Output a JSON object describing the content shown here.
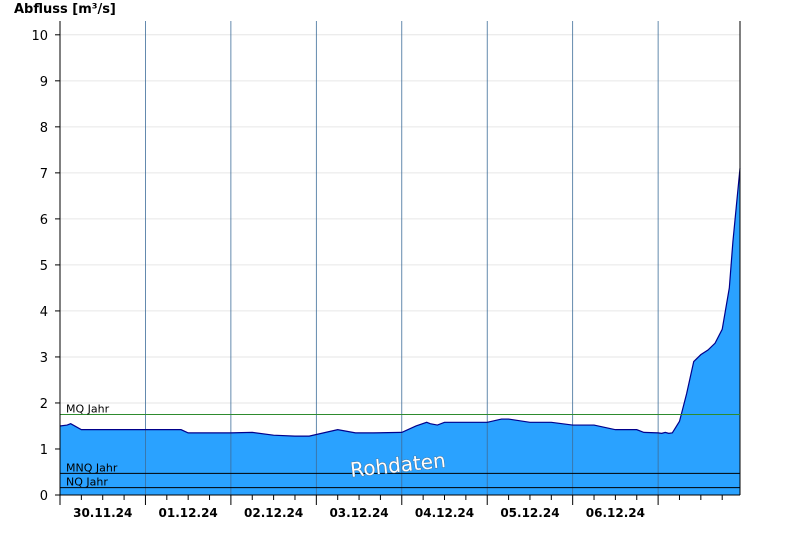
{
  "chart_data": {
    "type": "area",
    "ylabel": "Abfluss [m³/s]",
    "ylim": [
      0,
      10.3
    ],
    "yticks": [
      "0",
      "1",
      "2",
      "3",
      "4",
      "5",
      "6",
      "7",
      "8",
      "9",
      "10"
    ],
    "xlim": [
      "2024-11-29T00:00",
      "2024-12-06T23:00"
    ],
    "xticks": [
      "30.11.24",
      "01.12.24",
      "02.12.24",
      "03.12.24",
      "04.12.24",
      "05.12.24",
      "06.12.24"
    ],
    "grid": true,
    "series": [
      {
        "color": "#2aa2ff",
        "line_color": "#00008b",
        "x": [
          "2024-11-29T00:00",
          "2024-11-29T02:00",
          "2024-11-29T03:00",
          "2024-11-29T06:00",
          "2024-11-30T00:00",
          "2024-11-30T06:00",
          "2024-11-30T10:00",
          "2024-11-30T12:00",
          "2024-11-30T18:00",
          "2024-12-01T00:00",
          "2024-12-01T06:00",
          "2024-12-01T12:00",
          "2024-12-01T18:00",
          "2024-12-01T22:00",
          "2024-12-02T06:00",
          "2024-12-02T11:00",
          "2024-12-02T16:00",
          "2024-12-03T00:00",
          "2024-12-03T04:00",
          "2024-12-03T07:00",
          "2024-12-03T08:00",
          "2024-12-03T10:00",
          "2024-12-03T12:00",
          "2024-12-03T18:00",
          "2024-12-04T00:00",
          "2024-12-04T04:00",
          "2024-12-04T06:00",
          "2024-12-04T12:00",
          "2024-12-04T18:00",
          "2024-12-05T00:00",
          "2024-12-05T06:00",
          "2024-12-05T12:00",
          "2024-12-05T16:00",
          "2024-12-05T18:00",
          "2024-12-05T20:00",
          "2024-12-06T00:00",
          "2024-12-06T01:00",
          "2024-12-06T02:00",
          "2024-12-06T03:00",
          "2024-12-06T04:00",
          "2024-12-06T06:00",
          "2024-12-06T08:00",
          "2024-12-06T10:00",
          "2024-12-06T12:00",
          "2024-12-06T14:00",
          "2024-12-06T16:00",
          "2024-12-06T18:00",
          "2024-12-06T20:00",
          "2024-12-06T21:00",
          "2024-12-06T22:00",
          "2024-12-06T23:00"
        ],
        "values": [
          1.5,
          1.52,
          1.55,
          1.42,
          1.42,
          1.42,
          1.42,
          1.35,
          1.35,
          1.35,
          1.36,
          1.3,
          1.28,
          1.28,
          1.42,
          1.35,
          1.35,
          1.36,
          1.5,
          1.58,
          1.55,
          1.52,
          1.58,
          1.58,
          1.58,
          1.65,
          1.65,
          1.58,
          1.58,
          1.52,
          1.52,
          1.42,
          1.42,
          1.42,
          1.36,
          1.35,
          1.34,
          1.36,
          1.34,
          1.35,
          1.6,
          2.2,
          2.9,
          3.05,
          3.15,
          3.3,
          3.6,
          4.5,
          5.5,
          6.3,
          7.1
        ]
      }
    ],
    "reference_lines": [
      {
        "name": "MQ Jahr",
        "value": 1.75,
        "color": "#2e8b2e"
      },
      {
        "name": "MNQ Jahr",
        "value": 0.47,
        "color": "#000000"
      },
      {
        "name": "NQ Jahr",
        "value": 0.16,
        "color": "#000000"
      }
    ],
    "annotation": "Rohdaten"
  }
}
